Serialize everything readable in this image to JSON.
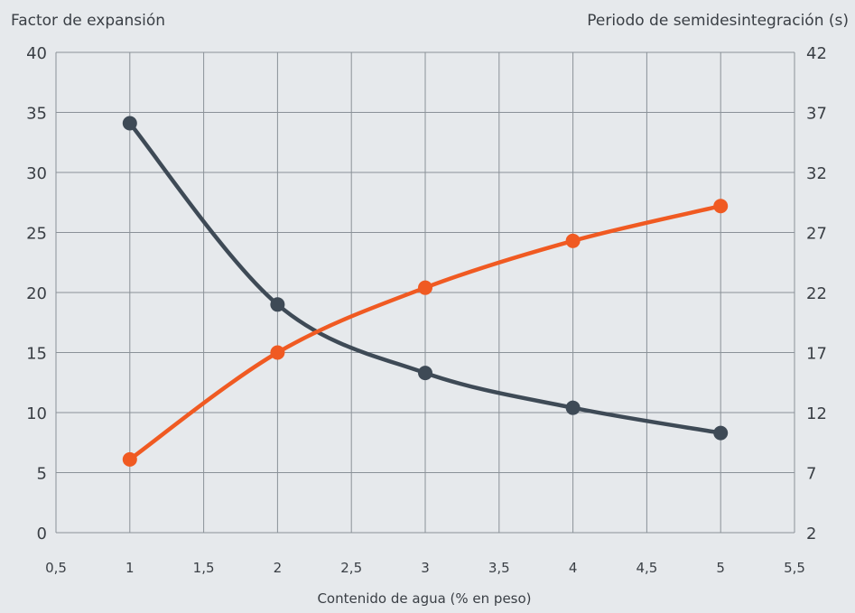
{
  "chart_data": {
    "type": "line",
    "xlabel": "Contenido de agua (% en peso)",
    "ylabel_left": "Factor de expansión",
    "ylabel_right": "Periodo de semidesintegración (s)",
    "xlim": [
      0.5,
      5.5
    ],
    "ylim_left": [
      0,
      40
    ],
    "ylim_right": [
      2,
      42
    ],
    "x_ticks": [
      "0,5",
      "1",
      "1,5",
      "2",
      "2,5",
      "3",
      "3,5",
      "4",
      "4,5",
      "5",
      "5,5"
    ],
    "y_ticks_left": [
      "0",
      "5",
      "10",
      "15",
      "20",
      "25",
      "30",
      "35",
      "40"
    ],
    "y_ticks_right": [
      "2",
      "7",
      "12",
      "17",
      "22",
      "27",
      "32",
      "37",
      "42"
    ],
    "grid": true,
    "series": [
      {
        "axis": "left",
        "color": "#3e4a56",
        "x": [
          1,
          2,
          3,
          4,
          5
        ],
        "y": [
          34.1,
          19.0,
          13.3,
          10.4,
          8.3
        ]
      },
      {
        "axis": "right",
        "color": "#f05a22",
        "x": [
          1,
          2,
          3,
          4,
          5
        ],
        "y": [
          8.1,
          17.0,
          22.4,
          26.3,
          29.2
        ]
      }
    ]
  }
}
